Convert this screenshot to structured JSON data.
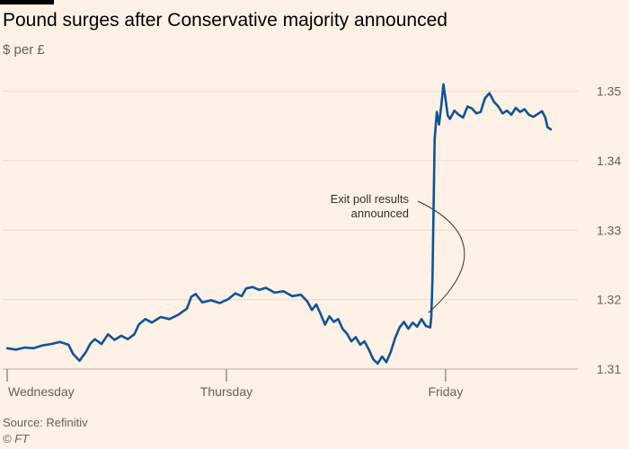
{
  "header": {
    "title": "Pound surges after Conservative majority announced",
    "subtitle": "$ per £"
  },
  "footer": {
    "source": "Source: Refinitiv",
    "credit": "© FT"
  },
  "colors": {
    "background": "#fff1e5",
    "line": "#0f5499",
    "grid": "#e6d9ce",
    "text": "#66605c"
  },
  "chart_data": {
    "type": "line",
    "title": "Pound surges after Conservative majority announced",
    "subtitle": "$ per £",
    "xlabel": "",
    "ylabel": "$ per £",
    "y_axis_side": "right",
    "grid": true,
    "ylim": [
      1.308,
      1.352
    ],
    "yticks": [
      1.31,
      1.32,
      1.33,
      1.34,
      1.35
    ],
    "ytick_labels": [
      "1.31",
      "1.32",
      "1.33",
      "1.34",
      "1.35"
    ],
    "x_categories": [
      "Wednesday",
      "Thursday",
      "Friday"
    ],
    "x_tick_positions": [
      0,
      1,
      2
    ],
    "xlim": [
      0,
      2.48
    ],
    "annotation": {
      "lines": [
        "Exit poll results",
        "announced"
      ],
      "x": 1.93,
      "y": 1.3163
    },
    "series": [
      {
        "points": [
          [
            0.0,
            1.313
          ],
          [
            0.04,
            1.3128
          ],
          [
            0.08,
            1.3131
          ],
          [
            0.12,
            1.313
          ],
          [
            0.16,
            1.3134
          ],
          [
            0.2,
            1.3136
          ],
          [
            0.24,
            1.3139
          ],
          [
            0.28,
            1.3135
          ],
          [
            0.3,
            1.3122
          ],
          [
            0.33,
            1.3112
          ],
          [
            0.36,
            1.3125
          ],
          [
            0.38,
            1.3137
          ],
          [
            0.4,
            1.3143
          ],
          [
            0.43,
            1.3136
          ],
          [
            0.46,
            1.315
          ],
          [
            0.49,
            1.3142
          ],
          [
            0.52,
            1.3148
          ],
          [
            0.55,
            1.3143
          ],
          [
            0.58,
            1.315
          ],
          [
            0.6,
            1.3164
          ],
          [
            0.63,
            1.3172
          ],
          [
            0.66,
            1.3167
          ],
          [
            0.7,
            1.3175
          ],
          [
            0.74,
            1.3172
          ],
          [
            0.78,
            1.3178
          ],
          [
            0.82,
            1.3187
          ],
          [
            0.84,
            1.3204
          ],
          [
            0.86,
            1.3208
          ],
          [
            0.89,
            1.3196
          ],
          [
            0.93,
            1.3199
          ],
          [
            0.97,
            1.3195
          ],
          [
            1.01,
            1.3201
          ],
          [
            1.04,
            1.3209
          ],
          [
            1.07,
            1.3205
          ],
          [
            1.09,
            1.3216
          ],
          [
            1.12,
            1.3218
          ],
          [
            1.15,
            1.3214
          ],
          [
            1.18,
            1.3217
          ],
          [
            1.22,
            1.321
          ],
          [
            1.26,
            1.3212
          ],
          [
            1.3,
            1.3205
          ],
          [
            1.34,
            1.3207
          ],
          [
            1.37,
            1.3197
          ],
          [
            1.39,
            1.3185
          ],
          [
            1.41,
            1.3193
          ],
          [
            1.43,
            1.3179
          ],
          [
            1.45,
            1.3164
          ],
          [
            1.47,
            1.3176
          ],
          [
            1.49,
            1.3168
          ],
          [
            1.51,
            1.3172
          ],
          [
            1.53,
            1.3158
          ],
          [
            1.55,
            1.3151
          ],
          [
            1.57,
            1.314
          ],
          [
            1.59,
            1.3146
          ],
          [
            1.61,
            1.3135
          ],
          [
            1.63,
            1.314
          ],
          [
            1.65,
            1.3128
          ],
          [
            1.67,
            1.3114
          ],
          [
            1.69,
            1.3108
          ],
          [
            1.71,
            1.3118
          ],
          [
            1.73,
            1.311
          ],
          [
            1.75,
            1.3125
          ],
          [
            1.77,
            1.3145
          ],
          [
            1.79,
            1.316
          ],
          [
            1.81,
            1.3168
          ],
          [
            1.83,
            1.3158
          ],
          [
            1.85,
            1.3167
          ],
          [
            1.87,
            1.3161
          ],
          [
            1.89,
            1.3172
          ],
          [
            1.91,
            1.3162
          ],
          [
            1.93,
            1.316
          ],
          [
            1.935,
            1.3175
          ],
          [
            1.94,
            1.323
          ],
          [
            1.945,
            1.333
          ],
          [
            1.95,
            1.343
          ],
          [
            1.96,
            1.347
          ],
          [
            1.97,
            1.3452
          ],
          [
            1.98,
            1.3478
          ],
          [
            1.99,
            1.351
          ],
          [
            2.0,
            1.3488
          ],
          [
            2.01,
            1.3465
          ],
          [
            2.02,
            1.346
          ],
          [
            2.04,
            1.3472
          ],
          [
            2.06,
            1.3466
          ],
          [
            2.08,
            1.3462
          ],
          [
            2.1,
            1.3478
          ],
          [
            2.12,
            1.3475
          ],
          [
            2.14,
            1.3468
          ],
          [
            2.16,
            1.347
          ],
          [
            2.18,
            1.349
          ],
          [
            2.2,
            1.3497
          ],
          [
            2.22,
            1.3485
          ],
          [
            2.24,
            1.3478
          ],
          [
            2.26,
            1.3468
          ],
          [
            2.28,
            1.3472
          ],
          [
            2.3,
            1.3466
          ],
          [
            2.32,
            1.3476
          ],
          [
            2.34,
            1.347
          ],
          [
            2.36,
            1.3474
          ],
          [
            2.38,
            1.3466
          ],
          [
            2.4,
            1.3463
          ],
          [
            2.42,
            1.3467
          ],
          [
            2.44,
            1.3471
          ],
          [
            2.455,
            1.3462
          ],
          [
            2.465,
            1.3448
          ],
          [
            2.48,
            1.3445
          ]
        ]
      }
    ]
  }
}
